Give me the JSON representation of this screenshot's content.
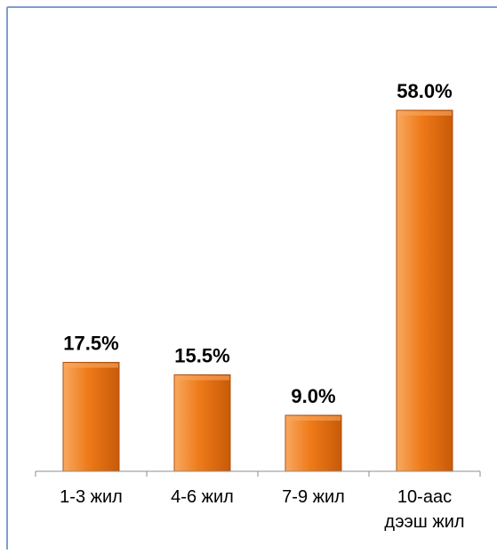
{
  "chart_data": {
    "type": "bar",
    "title": "",
    "xlabel": "",
    "ylabel": "",
    "categories": [
      [
        "1-3 жил"
      ],
      [
        "4-6 жил"
      ],
      [
        "7-9 жил"
      ],
      [
        "10-аас",
        "дээш жил"
      ]
    ],
    "values": [
      17.5,
      15.5,
      9.0,
      58.0
    ],
    "value_labels": [
      "17.5%",
      "15.5%",
      "9.0%",
      "58.0%"
    ],
    "ylim": [
      0,
      70
    ],
    "grid": false,
    "legend": "none",
    "colors": {
      "bar_light": "#F8A860",
      "bar_main": "#EE7A18",
      "bar_dark": "#C85A08",
      "bar_edge": "#B05210",
      "frame": "#7F9DCE",
      "axis": "#8C8C8C"
    }
  }
}
